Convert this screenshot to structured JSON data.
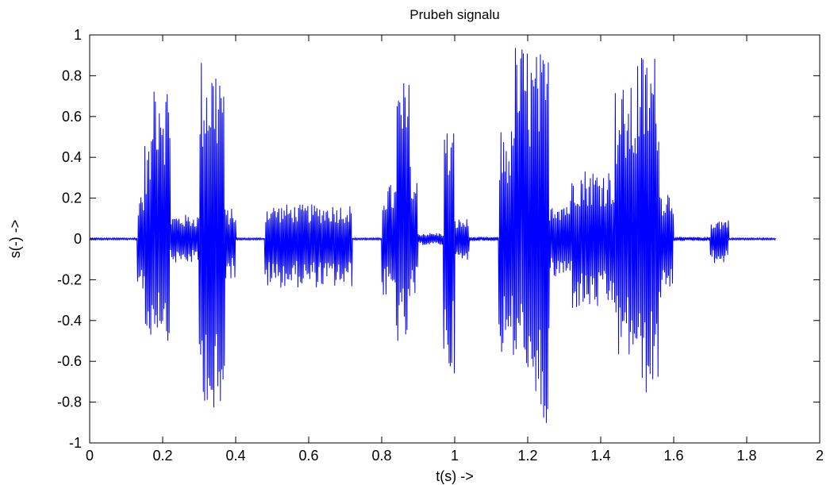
{
  "chart_data": {
    "type": "line",
    "title": "Prubeh signalu",
    "xlabel": "t(s) ->",
    "ylabel": "s(-) ->",
    "xlim": [
      0,
      2
    ],
    "ylim": [
      -1,
      1
    ],
    "grid": false,
    "line_color": "#0000ff",
    "x_ticks": [
      "0",
      "0.2",
      "0.4",
      "0.6",
      "0.8",
      "1",
      "1.2",
      "1.4",
      "1.6",
      "1.8",
      "2"
    ],
    "y_ticks": [
      "-1",
      "-0.8",
      "-0.6",
      "-0.4",
      "-0.2",
      "0",
      "0.2",
      "0.4",
      "0.6",
      "0.8",
      "1"
    ],
    "series": [
      {
        "x_start": 0,
        "x_end": 1.88,
        "envelope": [
          {
            "t_start": 0.0,
            "t_end": 0.13,
            "pos": 0.005,
            "neg": -0.005
          },
          {
            "t_start": 0.13,
            "t_end": 0.15,
            "pos": 0.25,
            "neg": -0.25
          },
          {
            "t_start": 0.15,
            "t_end": 0.17,
            "pos": 0.48,
            "neg": -0.53
          },
          {
            "t_start": 0.17,
            "t_end": 0.2,
            "pos": 0.88,
            "neg": -0.45
          },
          {
            "t_start": 0.2,
            "t_end": 0.22,
            "pos": 0.8,
            "neg": -0.5
          },
          {
            "t_start": 0.22,
            "t_end": 0.3,
            "pos": 0.12,
            "neg": -0.12
          },
          {
            "t_start": 0.3,
            "t_end": 0.33,
            "pos": 0.9,
            "neg": -0.8
          },
          {
            "t_start": 0.33,
            "t_end": 0.37,
            "pos": 0.9,
            "neg": -1.0
          },
          {
            "t_start": 0.37,
            "t_end": 0.4,
            "pos": 0.15,
            "neg": -0.2
          },
          {
            "t_start": 0.4,
            "t_end": 0.48,
            "pos": 0.005,
            "neg": -0.005
          },
          {
            "t_start": 0.48,
            "t_end": 0.72,
            "pos": 0.17,
            "neg": -0.24
          },
          {
            "t_start": 0.72,
            "t_end": 0.8,
            "pos": 0.005,
            "neg": -0.005
          },
          {
            "t_start": 0.8,
            "t_end": 0.84,
            "pos": 0.27,
            "neg": -0.3
          },
          {
            "t_start": 0.84,
            "t_end": 0.88,
            "pos": 0.78,
            "neg": -0.52
          },
          {
            "t_start": 0.88,
            "t_end": 0.9,
            "pos": 0.3,
            "neg": -0.3
          },
          {
            "t_start": 0.9,
            "t_end": 0.97,
            "pos": 0.03,
            "neg": -0.03
          },
          {
            "t_start": 0.97,
            "t_end": 1.0,
            "pos": 0.55,
            "neg": -0.66
          },
          {
            "t_start": 1.0,
            "t_end": 1.04,
            "pos": 0.1,
            "neg": -0.12
          },
          {
            "t_start": 1.04,
            "t_end": 1.12,
            "pos": 0.01,
            "neg": -0.01
          },
          {
            "t_start": 1.12,
            "t_end": 1.16,
            "pos": 0.55,
            "neg": -0.58
          },
          {
            "t_start": 1.16,
            "t_end": 1.2,
            "pos": 0.97,
            "neg": -0.62
          },
          {
            "t_start": 1.2,
            "t_end": 1.26,
            "pos": 0.92,
            "neg": -0.96
          },
          {
            "t_start": 1.26,
            "t_end": 1.32,
            "pos": 0.2,
            "neg": -0.2
          },
          {
            "t_start": 1.32,
            "t_end": 1.44,
            "pos": 0.35,
            "neg": -0.35
          },
          {
            "t_start": 1.44,
            "t_end": 1.5,
            "pos": 0.75,
            "neg": -0.6
          },
          {
            "t_start": 1.5,
            "t_end": 1.56,
            "pos": 0.92,
            "neg": -0.77
          },
          {
            "t_start": 1.56,
            "t_end": 1.6,
            "pos": 0.25,
            "neg": -0.3
          },
          {
            "t_start": 1.6,
            "t_end": 1.7,
            "pos": 0.01,
            "neg": -0.01
          },
          {
            "t_start": 1.7,
            "t_end": 1.75,
            "pos": 0.1,
            "neg": -0.12
          },
          {
            "t_start": 1.75,
            "t_end": 1.88,
            "pos": 0.005,
            "neg": -0.005
          }
        ]
      }
    ]
  }
}
